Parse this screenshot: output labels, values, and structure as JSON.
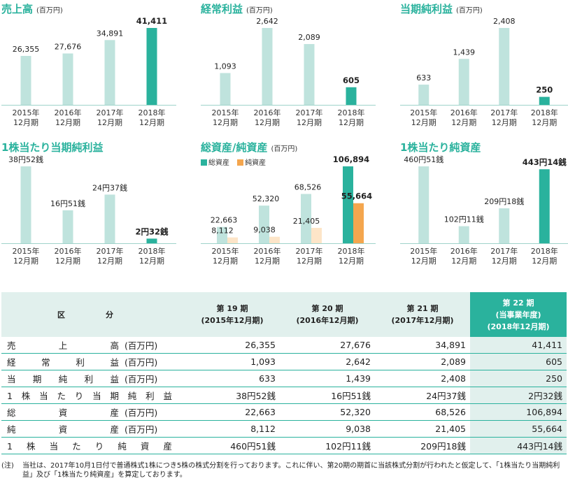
{
  "chart_data": [
    {
      "type": "bar",
      "title": "売上高",
      "unit": "(百万円)",
      "categories": [
        [
          "2015年",
          "12月期"
        ],
        [
          "2016年",
          "12月期"
        ],
        [
          "2017年",
          "12月期"
        ],
        [
          "2018年",
          "12月期"
        ]
      ],
      "values": [
        26355,
        27676,
        34891,
        41411
      ],
      "labels": [
        "26,355",
        "27,676",
        "34,891",
        "41,411"
      ]
    },
    {
      "type": "bar",
      "title": "経常利益",
      "unit": "(百万円)",
      "categories": [
        [
          "2015年",
          "12月期"
        ],
        [
          "2016年",
          "12月期"
        ],
        [
          "2017年",
          "12月期"
        ],
        [
          "2018年",
          "12月期"
        ]
      ],
      "values": [
        1093,
        2642,
        2089,
        605
      ],
      "labels": [
        "1,093",
        "2,642",
        "2,089",
        "605"
      ]
    },
    {
      "type": "bar",
      "title": "当期純利益",
      "unit": "(百万円)",
      "categories": [
        [
          "2015年",
          "12月期"
        ],
        [
          "2016年",
          "12月期"
        ],
        [
          "2017年",
          "12月期"
        ],
        [
          "2018年",
          "12月期"
        ]
      ],
      "values": [
        633,
        1439,
        2408,
        250
      ],
      "labels": [
        "633",
        "1,439",
        "2,408",
        "250"
      ]
    },
    {
      "type": "bar",
      "title": "1株当たり当期純利益",
      "unit": "",
      "categories": [
        [
          "2015年",
          "12月期"
        ],
        [
          "2016年",
          "12月期"
        ],
        [
          "2017年",
          "12月期"
        ],
        [
          "2018年",
          "12月期"
        ]
      ],
      "values": [
        38.52,
        16.51,
        24.37,
        2.32
      ],
      "labels": [
        "38円52銭",
        "16円51銭",
        "24円37銭",
        "2円32銭"
      ]
    },
    {
      "type": "bar",
      "title": "総資産/純資産",
      "unit": "(百万円)",
      "categories": [
        [
          "2015年",
          "12月期"
        ],
        [
          "2016年",
          "12月期"
        ],
        [
          "2017年",
          "12月期"
        ],
        [
          "2018年",
          "12月期"
        ]
      ],
      "series": [
        {
          "name": "総資産",
          "values": [
            22663,
            52320,
            68526,
            106894
          ],
          "labels": [
            "22,663",
            "52,320",
            "68,526",
            "106,894"
          ]
        },
        {
          "name": "純資産",
          "values": [
            8112,
            9038,
            21405,
            55664
          ],
          "labels": [
            "8,112",
            "9,038",
            "21,405",
            "55,664"
          ]
        }
      ]
    },
    {
      "type": "bar",
      "title": "1株当たり純資産",
      "unit": "",
      "categories": [
        [
          "2015年",
          "12月期"
        ],
        [
          "2016年",
          "12月期"
        ],
        [
          "2017年",
          "12月期"
        ],
        [
          "2018年",
          "12月期"
        ]
      ],
      "values": [
        460.51,
        102.11,
        209.18,
        443.14
      ],
      "labels": [
        "460円51銭",
        "102円11銭",
        "209円18銭",
        "443円14銭"
      ]
    }
  ],
  "colors": {
    "accent": "#2ab29d",
    "bar_past": "#bfe3dd",
    "net_asset": "#f4a64e",
    "net_asset_past": "#fde5c8",
    "header_bg": "#e1f0ed"
  },
  "table": {
    "header": {
      "label": "区分",
      "periods": [
        {
          "name": "第 19 期",
          "sub": "(2015年12月期)"
        },
        {
          "name": "第 20 期",
          "sub": "(2016年12月期)"
        },
        {
          "name": "第 21 期",
          "sub": "(2017年12月期)"
        },
        {
          "name": "第 22 期",
          "sub1": "(当事業年度)",
          "sub": "(2018年12月期)"
        }
      ]
    },
    "rows": [
      {
        "label": "売上高",
        "unit": "(百万円)",
        "values": [
          "26,355",
          "27,676",
          "34,891",
          "41,411"
        ]
      },
      {
        "label": "経常利益",
        "unit": "(百万円)",
        "values": [
          "1,093",
          "2,642",
          "2,089",
          "605"
        ]
      },
      {
        "label": "当期純利益",
        "unit": "(百万円)",
        "values": [
          "633",
          "1,439",
          "2,408",
          "250"
        ]
      },
      {
        "label": "1株当たり当期純利益",
        "unit": "",
        "values": [
          "38円52銭",
          "16円51銭",
          "24円37銭",
          "2円32銭"
        ]
      },
      {
        "label": "総資産",
        "unit": "(百万円)",
        "values": [
          "22,663",
          "52,320",
          "68,526",
          "106,894"
        ]
      },
      {
        "label": "純資産",
        "unit": "(百万円)",
        "values": [
          "8,112",
          "9,038",
          "21,405",
          "55,664"
        ]
      },
      {
        "label": "1株当たり純資産",
        "unit": "",
        "values": [
          "460円51銭",
          "102円11銭",
          "209円18銭",
          "443円14銭"
        ]
      }
    ]
  },
  "note": {
    "mark": "(注)",
    "text": "当社は、2017年10月1日付で普通株式1株につき5株の株式分割を行っております。これに伴い、第20期の期首に当該株式分割が行われたと仮定して、「1株当たり当期純利益」及び「1株当たり純資産」を算定しております。"
  }
}
